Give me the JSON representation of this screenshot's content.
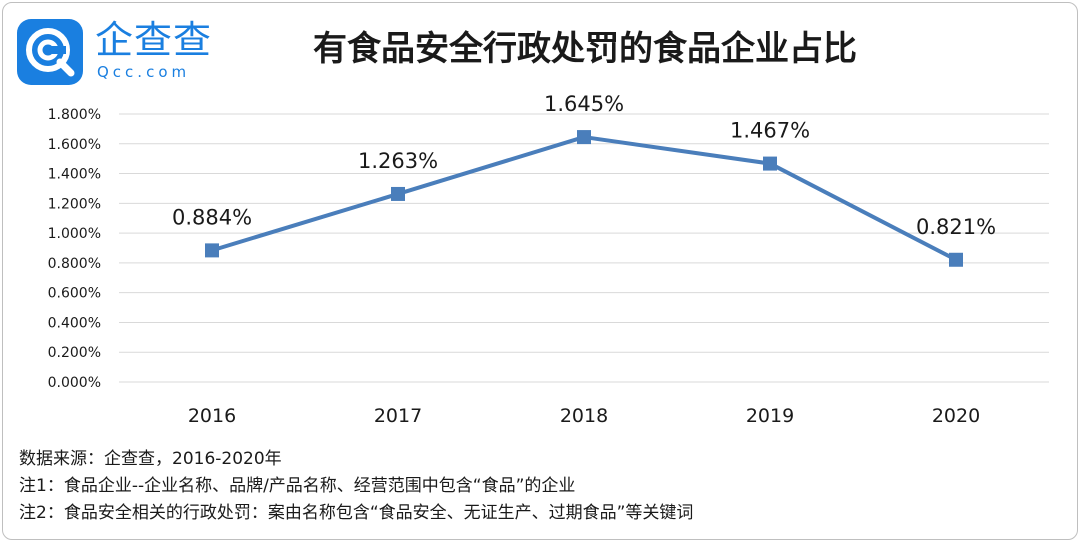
{
  "logo": {
    "icon": "qcc-logo-icon",
    "brand_color": "#1a7fe0",
    "name": "企查查",
    "domain": "Qcc.com"
  },
  "chart_data": {
    "type": "line",
    "title": "有食品安全行政处罚的食品企业占比",
    "categories": [
      "2016",
      "2017",
      "2018",
      "2019",
      "2020"
    ],
    "series": [
      {
        "values": [
          0.884,
          1.263,
          1.645,
          1.467,
          0.821
        ],
        "labels": [
          "0.884%",
          "1.263%",
          "1.645%",
          "1.467%",
          "0.821%"
        ],
        "color": "#4a7ebb"
      }
    ],
    "ylim": [
      0,
      1.8
    ],
    "y_ticks": [
      "0.000%",
      "0.200%",
      "0.400%",
      "0.600%",
      "0.800%",
      "1.000%",
      "1.200%",
      "1.400%",
      "1.600%",
      "1.800%"
    ],
    "grid": true,
    "marker": "square",
    "xlabel": "",
    "ylabel": ""
  },
  "notes": [
    "数据来源：企查查，2016-2020年",
    "注1：食品企业--企业名称、品牌/产品名称、经营范围中包含“食品”的企业",
    "注2：食品安全相关的行政处罚：案由名称包含“食品安全、无证生产、过期食品”等关键词"
  ]
}
